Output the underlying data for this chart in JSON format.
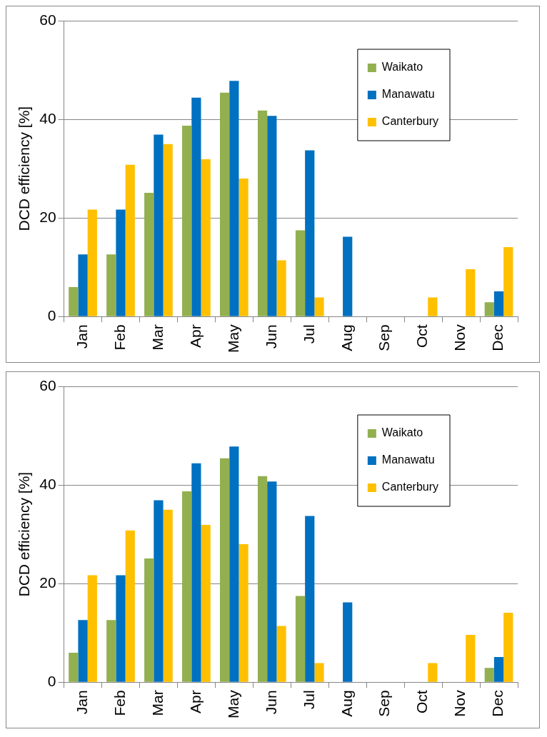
{
  "chart_data": [
    {
      "type": "bar",
      "ylabel": "DCD efficiency [%]",
      "categories": [
        "Jan",
        "Feb",
        "Mar",
        "Apr",
        "May",
        "Jun",
        "Jul",
        "Aug",
        "Sep",
        "Oct",
        "Nov",
        "Dec"
      ],
      "series": [
        {
          "name": "Waikato",
          "color": "#92b050",
          "values": [
            6.0,
            12.6,
            25.1,
            38.7,
            45.4,
            41.8,
            17.5,
            0,
            0,
            0,
            0,
            2.9
          ]
        },
        {
          "name": "Manawatu",
          "color": "#0070c0",
          "values": [
            12.6,
            21.7,
            36.9,
            44.4,
            47.8,
            40.7,
            33.7,
            16.2,
            0,
            0,
            0,
            5.1
          ]
        },
        {
          "name": "Canterbury",
          "color": "#ffc000",
          "values": [
            21.7,
            30.8,
            35.0,
            31.9,
            28.0,
            11.4,
            3.9,
            0,
            0,
            3.9,
            9.6,
            14.1
          ]
        }
      ],
      "ylim": [
        0,
        60
      ],
      "yticks": [
        0,
        20,
        40,
        60
      ],
      "grid": "y",
      "legend": "top right"
    },
    {
      "type": "bar",
      "ylabel": "DCD efficiency [%]",
      "categories": [
        "Jan",
        "Feb",
        "Mar",
        "Apr",
        "May",
        "Jun",
        "Jul",
        "Aug",
        "Sep",
        "Oct",
        "Nov",
        "Dec"
      ],
      "series": [
        {
          "name": "Waikato",
          "color": "#92b050",
          "values": [
            6.0,
            12.6,
            25.1,
            38.7,
            45.4,
            41.8,
            17.5,
            0,
            0,
            0,
            0,
            2.9
          ]
        },
        {
          "name": "Manawatu",
          "color": "#0070c0",
          "values": [
            12.6,
            21.7,
            36.9,
            44.4,
            47.8,
            40.7,
            33.7,
            16.2,
            0,
            0,
            0,
            5.1
          ]
        },
        {
          "name": "Canterbury",
          "color": "#ffc000",
          "values": [
            21.7,
            30.8,
            35.0,
            31.9,
            28.0,
            11.4,
            3.9,
            0,
            0,
            3.9,
            9.6,
            14.1
          ]
        }
      ],
      "ylim": [
        0,
        60
      ],
      "yticks": [
        0,
        20,
        40,
        60
      ],
      "grid": "y",
      "legend": "top right"
    }
  ]
}
